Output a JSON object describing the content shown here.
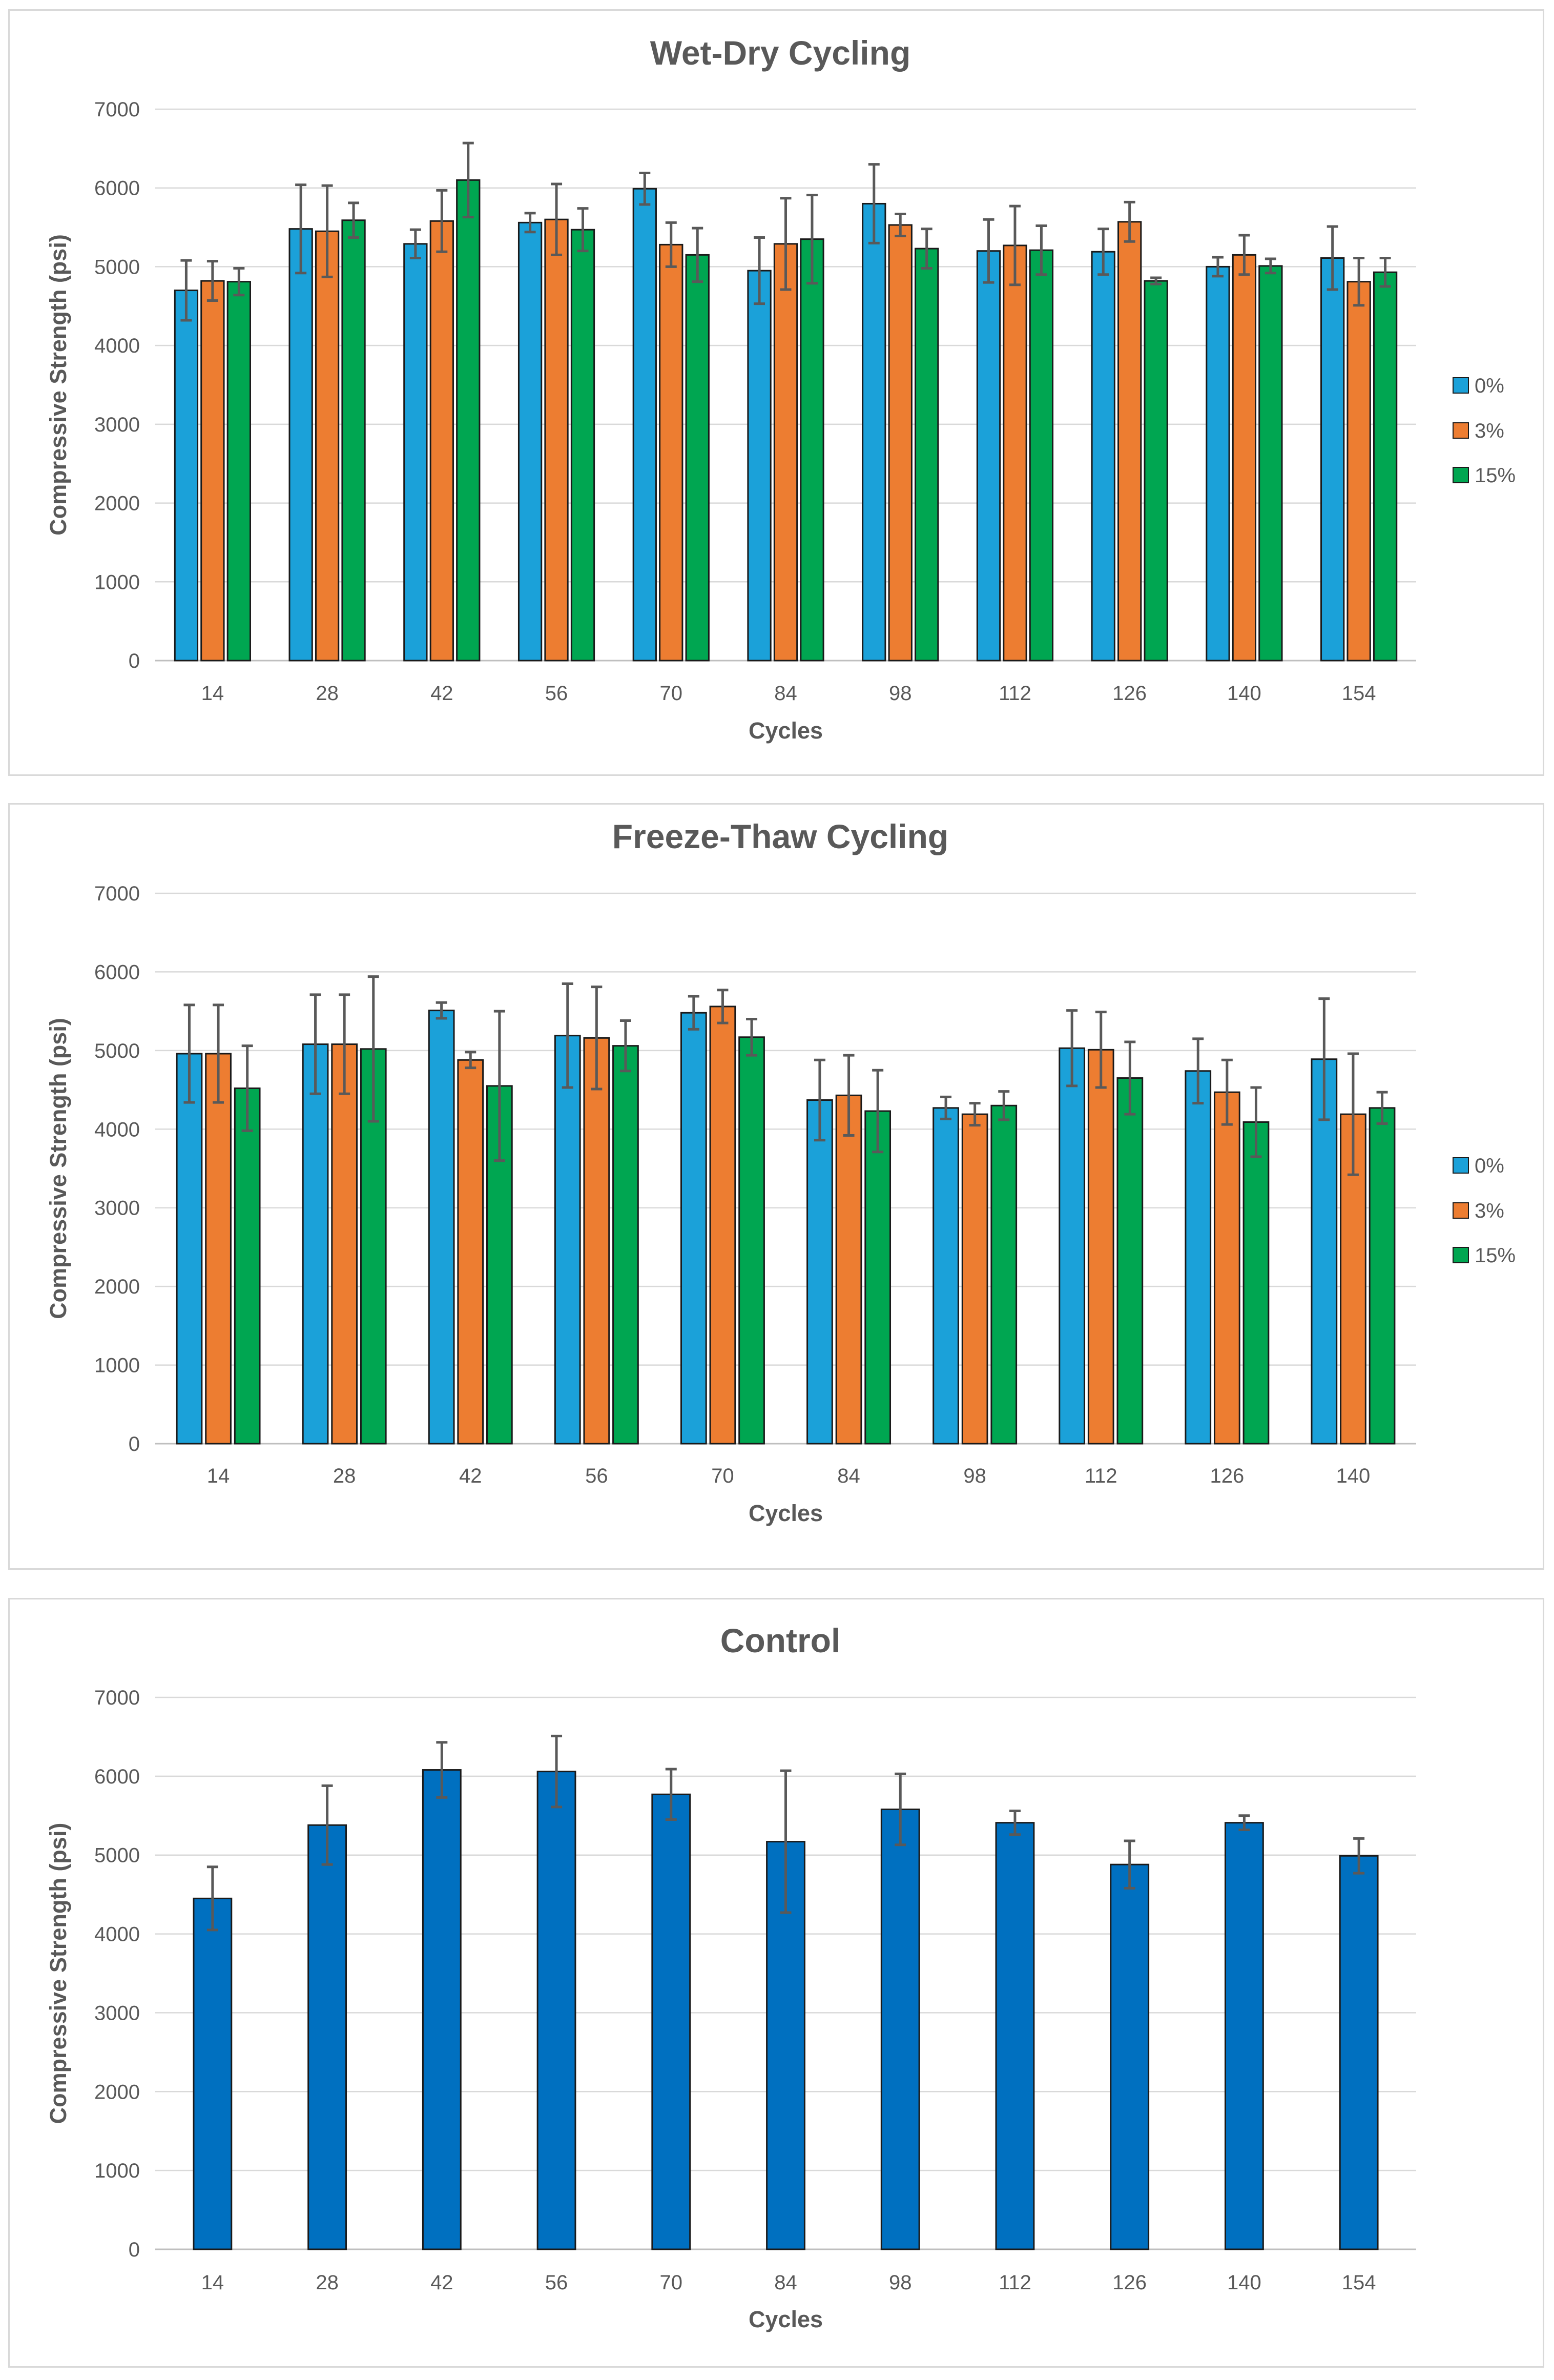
{
  "chart_data": [
    {
      "type": "bar",
      "title": "Wet-Dry Cycling",
      "xlabel": "Cycles",
      "ylabel": "Compressive Strength (psi)",
      "ylim": [
        0,
        7000
      ],
      "yticks": [
        0,
        1000,
        2000,
        3000,
        4000,
        5000,
        6000,
        7000
      ],
      "grid": true,
      "legend": "right",
      "categories": [
        "14",
        "28",
        "42",
        "56",
        "70",
        "84",
        "98",
        "112",
        "126",
        "140",
        "154"
      ],
      "series": [
        {
          "name": "0%",
          "color": "#1ba1d9",
          "values": [
            4700,
            5480,
            5290,
            5560,
            5990,
            4950,
            5800,
            5200,
            5190,
            5000,
            5110
          ],
          "errors": [
            380,
            560,
            180,
            120,
            200,
            420,
            500,
            400,
            290,
            120,
            400
          ]
        },
        {
          "name": "3%",
          "color": "#ed7d31",
          "values": [
            4820,
            5450,
            5580,
            5600,
            5280,
            5290,
            5530,
            5270,
            5570,
            5150,
            4810
          ],
          "errors": [
            250,
            580,
            390,
            450,
            280,
            580,
            140,
            500,
            250,
            250,
            300
          ]
        },
        {
          "name": "15%",
          "color": "#00a651",
          "values": [
            4810,
            5590,
            6100,
            5470,
            5150,
            5350,
            5230,
            5210,
            4820,
            5010,
            4930
          ],
          "errors": [
            170,
            220,
            470,
            270,
            340,
            560,
            250,
            310,
            40,
            90,
            180
          ]
        }
      ]
    },
    {
      "type": "bar",
      "title": "Freeze-Thaw Cycling",
      "xlabel": "Cycles",
      "ylabel": "Compressive Strength (psi)",
      "ylim": [
        0,
        7000
      ],
      "yticks": [
        0,
        1000,
        2000,
        3000,
        4000,
        5000,
        6000,
        7000
      ],
      "grid": true,
      "legend": "right",
      "categories": [
        "14",
        "28",
        "42",
        "56",
        "70",
        "84",
        "98",
        "112",
        "126",
        "140"
      ],
      "series": [
        {
          "name": "0%",
          "color": "#1ba1d9",
          "values": [
            4960,
            5080,
            5510,
            5190,
            5480,
            4370,
            4270,
            5030,
            4740,
            4890
          ],
          "errors": [
            620,
            630,
            100,
            660,
            210,
            510,
            140,
            480,
            410,
            770
          ]
        },
        {
          "name": "3%",
          "color": "#ed7d31",
          "values": [
            4960,
            5080,
            4880,
            5160,
            5560,
            4430,
            4190,
            5010,
            4470,
            4190
          ],
          "errors": [
            620,
            630,
            100,
            650,
            210,
            510,
            140,
            480,
            410,
            770
          ]
        },
        {
          "name": "15%",
          "color": "#00a651",
          "values": [
            4520,
            5020,
            4550,
            5060,
            5170,
            4230,
            4300,
            4650,
            4090,
            4270
          ],
          "errors": [
            540,
            920,
            950,
            320,
            230,
            520,
            180,
            460,
            440,
            200
          ]
        }
      ]
    },
    {
      "type": "bar",
      "title": "Control",
      "xlabel": "Cycles",
      "ylabel": "Compressive Strength (psi)",
      "ylim": [
        0,
        7000
      ],
      "yticks": [
        0,
        1000,
        2000,
        3000,
        4000,
        5000,
        6000,
        7000
      ],
      "grid": true,
      "legend": "none",
      "categories": [
        "14",
        "28",
        "42",
        "56",
        "70",
        "84",
        "98",
        "112",
        "126",
        "140",
        "154"
      ],
      "series": [
        {
          "name": "Control",
          "color": "#0070c0",
          "values": [
            4450,
            5380,
            6080,
            6060,
            5770,
            5170,
            5580,
            5410,
            4880,
            5410,
            4990
          ],
          "errors": [
            400,
            500,
            350,
            450,
            320,
            900,
            450,
            150,
            300,
            90,
            220
          ]
        }
      ]
    }
  ]
}
